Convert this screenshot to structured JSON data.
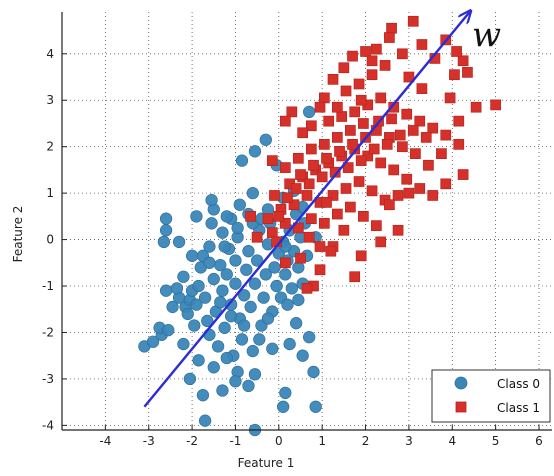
{
  "chart_data": {
    "type": "scatter",
    "xlabel": "Feature 1",
    "ylabel": "Feature 2",
    "xlim": [
      -5,
      6.3
    ],
    "ylim": [
      -4.1,
      4.9
    ],
    "x_ticks": [
      -4,
      -3,
      -2,
      -1,
      0,
      1,
      2,
      3,
      4,
      5,
      6
    ],
    "y_ticks": [
      -4,
      -3,
      -2,
      -1,
      0,
      1,
      2,
      3,
      4
    ],
    "grid": true,
    "legend_position": "bottom-right",
    "annotation": "w",
    "vector": {
      "from": [
        -3.1,
        -3.6
      ],
      "to": [
        4.4,
        4.9
      ],
      "color": "#2b2bd8"
    },
    "series": [
      {
        "name": "Class 0",
        "marker": "circle",
        "color": "#3a86b8",
        "points": [
          [
            -3.1,
            -2.3
          ],
          [
            -2.9,
            -2.2
          ],
          [
            -2.7,
            -2.05
          ],
          [
            -2.75,
            -1.9
          ],
          [
            -2.55,
            -1.95
          ],
          [
            -2.6,
            0.45
          ],
          [
            -2.6,
            0.2
          ],
          [
            -2.65,
            -0.05
          ],
          [
            -2.3,
            -1.25
          ],
          [
            -2.35,
            -1.05
          ],
          [
            -2.2,
            -0.8
          ],
          [
            -2.15,
            -1.45
          ],
          [
            -2.1,
            -1.6
          ],
          [
            -2.05,
            -1.3
          ],
          [
            -2.0,
            -1.1
          ],
          [
            -1.95,
            -1.85
          ],
          [
            -1.9,
            -1.4
          ],
          [
            -1.85,
            -1.0
          ],
          [
            -1.8,
            -0.6
          ],
          [
            -1.75,
            -0.35
          ],
          [
            -1.7,
            -1.25
          ],
          [
            -1.65,
            -1.75
          ],
          [
            -1.6,
            -2.05
          ],
          [
            -1.6,
            -0.15
          ],
          [
            -1.55,
            0.35
          ],
          [
            -1.5,
            0.65
          ],
          [
            -1.5,
            -0.85
          ],
          [
            -1.45,
            -1.55
          ],
          [
            -1.4,
            -2.3
          ],
          [
            -1.35,
            -0.55
          ],
          [
            -1.3,
            0.15
          ],
          [
            -1.3,
            -1.1
          ],
          [
            -1.25,
            -1.9
          ],
          [
            -1.2,
            -0.75
          ],
          [
            -1.15,
            -0.2
          ],
          [
            -1.1,
            0.45
          ],
          [
            -1.1,
            -1.4
          ],
          [
            -1.05,
            -2.5
          ],
          [
            -1.0,
            -0.95
          ],
          [
            -1.0,
            -0.45
          ],
          [
            -0.95,
            0.05
          ],
          [
            -0.9,
            -1.7
          ],
          [
            -0.85,
            -2.15
          ],
          [
            -0.8,
            -1.2
          ],
          [
            -0.75,
            -0.65
          ],
          [
            -0.7,
            -0.25
          ],
          [
            -0.7,
            0.55
          ],
          [
            -0.65,
            -1.45
          ],
          [
            -0.6,
            -2.4
          ],
          [
            -0.55,
            -0.95
          ],
          [
            -0.5,
            -0.45
          ],
          [
            -0.45,
            0.2
          ],
          [
            -0.4,
            -1.85
          ],
          [
            -0.35,
            -1.25
          ],
          [
            -0.3,
            -0.75
          ],
          [
            -0.25,
            -0.1
          ],
          [
            -0.2,
            0.35
          ],
          [
            -0.15,
            -1.55
          ],
          [
            -0.1,
            -0.6
          ],
          [
            -0.05,
            -1.0
          ],
          [
            0.0,
            -0.3
          ],
          [
            0.05,
            -1.25
          ],
          [
            0.1,
            -0.05
          ],
          [
            0.15,
            -0.75
          ],
          [
            0.2,
            -0.45
          ],
          [
            0.25,
            0.2
          ],
          [
            0.3,
            -1.05
          ],
          [
            0.35,
            -0.25
          ],
          [
            0.4,
            0.55
          ],
          [
            0.45,
            -0.6
          ],
          [
            0.5,
            0.05
          ],
          [
            0.55,
            -0.95
          ],
          [
            0.6,
            0.35
          ],
          [
            0.65,
            -0.35
          ],
          [
            0.7,
            -2.1
          ],
          [
            -2.2,
            -2.25
          ],
          [
            -1.85,
            -2.6
          ],
          [
            -1.5,
            -2.75
          ],
          [
            -1.2,
            -2.55
          ],
          [
            -0.95,
            -2.85
          ],
          [
            -0.7,
            -3.15
          ],
          [
            -1.3,
            -3.25
          ],
          [
            -1.75,
            -3.35
          ],
          [
            -2.05,
            -3.0
          ],
          [
            -1.0,
            -3.05
          ],
          [
            -0.55,
            -2.9
          ],
          [
            0.15,
            -3.3
          ],
          [
            0.1,
            -3.6
          ],
          [
            -1.7,
            -3.9
          ],
          [
            -0.55,
            -4.1
          ],
          [
            0.8,
            -2.85
          ],
          [
            0.85,
            -3.6
          ],
          [
            0.55,
            -2.5
          ],
          [
            0.25,
            -2.25
          ],
          [
            -0.15,
            -2.35
          ],
          [
            -0.45,
            -2.15
          ],
          [
            -0.8,
            -1.85
          ],
          [
            -1.1,
            -1.65
          ],
          [
            -1.35,
            -1.35
          ],
          [
            -0.25,
            -1.7
          ],
          [
            0.2,
            -1.4
          ],
          [
            0.45,
            -1.3
          ],
          [
            0.4,
            -1.8
          ],
          [
            -1.9,
            0.5
          ],
          [
            -1.55,
            0.85
          ],
          [
            -1.2,
            0.5
          ],
          [
            -0.9,
            0.75
          ],
          [
            -0.6,
            1.0
          ],
          [
            -0.55,
            1.9
          ],
          [
            -0.85,
            1.7
          ],
          [
            -0.3,
            2.15
          ],
          [
            -0.05,
            1.6
          ],
          [
            0.35,
            1.05
          ],
          [
            0.7,
            2.75
          ],
          [
            -0.6,
            0.35
          ],
          [
            -0.25,
            0.65
          ],
          [
            0.1,
            0.9
          ],
          [
            -1.6,
            -0.5
          ],
          [
            -2.0,
            -0.35
          ],
          [
            -2.3,
            -0.05
          ],
          [
            -1.25,
            -0.15
          ],
          [
            -0.95,
            0.25
          ],
          [
            -0.4,
            0.45
          ],
          [
            0.15,
            -0.15
          ],
          [
            0.55,
            0.7
          ],
          [
            0.85,
            0.05
          ],
          [
            -2.45,
            -1.45
          ],
          [
            -2.6,
            -1.1
          ]
        ]
      },
      {
        "name": "Class 1",
        "marker": "square",
        "color": "#d6302a",
        "points": [
          [
            3.1,
            4.7
          ],
          [
            2.6,
            4.55
          ],
          [
            2.55,
            4.35
          ],
          [
            2.25,
            4.1
          ],
          [
            2.85,
            4.0
          ],
          [
            3.3,
            4.2
          ],
          [
            3.6,
            3.9
          ],
          [
            3.85,
            4.3
          ],
          [
            2.0,
            4.05
          ],
          [
            1.7,
            3.95
          ],
          [
            1.5,
            3.7
          ],
          [
            1.25,
            3.45
          ],
          [
            1.55,
            3.2
          ],
          [
            1.85,
            3.35
          ],
          [
            2.15,
            3.55
          ],
          [
            2.45,
            3.75
          ],
          [
            3.0,
            3.5
          ],
          [
            3.3,
            3.25
          ],
          [
            3.95,
            3.05
          ],
          [
            4.05,
            3.55
          ],
          [
            4.35,
            3.6
          ],
          [
            4.55,
            2.85
          ],
          [
            4.15,
            2.55
          ],
          [
            4.25,
            3.85
          ],
          [
            1.05,
            3.05
          ],
          [
            0.95,
            2.85
          ],
          [
            0.3,
            2.75
          ],
          [
            0.15,
            2.55
          ],
          [
            0.75,
            2.45
          ],
          [
            0.55,
            2.3
          ],
          [
            1.15,
            2.55
          ],
          [
            1.45,
            2.65
          ],
          [
            1.75,
            2.75
          ],
          [
            2.05,
            2.9
          ],
          [
            2.35,
            3.05
          ],
          [
            2.65,
            2.85
          ],
          [
            2.95,
            2.7
          ],
          [
            3.25,
            2.55
          ],
          [
            3.55,
            2.4
          ],
          [
            3.85,
            2.25
          ],
          [
            4.15,
            2.05
          ],
          [
            4.25,
            1.4
          ],
          [
            3.75,
            1.85
          ],
          [
            3.45,
            1.6
          ],
          [
            3.15,
            1.85
          ],
          [
            2.85,
            2.0
          ],
          [
            2.55,
            2.2
          ],
          [
            2.25,
            2.35
          ],
          [
            1.95,
            2.5
          ],
          [
            1.65,
            2.35
          ],
          [
            1.35,
            2.2
          ],
          [
            1.05,
            2.05
          ],
          [
            0.75,
            1.95
          ],
          [
            0.45,
            1.75
          ],
          [
            0.15,
            1.55
          ],
          [
            -0.15,
            1.7
          ],
          [
            0.25,
            1.2
          ],
          [
            0.55,
            1.35
          ],
          [
            0.85,
            1.5
          ],
          [
            1.15,
            1.65
          ],
          [
            1.45,
            1.8
          ],
          [
            1.75,
            1.95
          ],
          [
            2.05,
            1.8
          ],
          [
            2.35,
            1.65
          ],
          [
            2.65,
            1.5
          ],
          [
            2.95,
            1.3
          ],
          [
            3.25,
            1.1
          ],
          [
            3.55,
            0.95
          ],
          [
            3.85,
            1.2
          ],
          [
            2.75,
            0.95
          ],
          [
            2.45,
            0.85
          ],
          [
            2.15,
            1.05
          ],
          [
            1.85,
            1.25
          ],
          [
            1.55,
            1.1
          ],
          [
            1.25,
            0.95
          ],
          [
            0.95,
            0.8
          ],
          [
            0.65,
            0.95
          ],
          [
            0.35,
            0.75
          ],
          [
            0.05,
            0.65
          ],
          [
            -0.25,
            0.45
          ],
          [
            -0.65,
            0.5
          ],
          [
            -0.5,
            0.05
          ],
          [
            -0.15,
            0.15
          ],
          [
            0.15,
            0.35
          ],
          [
            0.45,
            0.25
          ],
          [
            0.75,
            0.45
          ],
          [
            1.05,
            0.35
          ],
          [
            1.35,
            0.55
          ],
          [
            1.65,
            0.7
          ],
          [
            1.95,
            0.5
          ],
          [
            2.25,
            0.3
          ],
          [
            2.55,
            0.75
          ],
          [
            0.95,
            -0.15
          ],
          [
            1.25,
            -0.15
          ],
          [
            0.5,
            -0.4
          ],
          [
            0.15,
            -0.5
          ],
          [
            -0.05,
            -0.05
          ],
          [
            0.95,
            -0.65
          ],
          [
            0.8,
            -1.0
          ],
          [
            0.65,
            -1.05
          ],
          [
            1.75,
            -0.8
          ],
          [
            1.2,
            -0.25
          ],
          [
            1.9,
            -0.35
          ],
          [
            2.35,
            -0.05
          ],
          [
            2.75,
            0.2
          ],
          [
            0.0,
            0.5
          ],
          [
            0.4,
            1.1
          ],
          [
            0.7,
            1.2
          ],
          [
            1.0,
            1.35
          ],
          [
            1.3,
            1.45
          ],
          [
            1.6,
            1.55
          ],
          [
            1.9,
            1.7
          ],
          [
            2.2,
            1.95
          ],
          [
            2.5,
            2.05
          ],
          [
            2.8,
            2.25
          ],
          [
            3.1,
            2.35
          ],
          [
            3.4,
            2.2
          ],
          [
            1.4,
            1.9
          ],
          [
            1.1,
            1.75
          ],
          [
            0.8,
            1.6
          ],
          [
            0.5,
            1.4
          ],
          [
            0.2,
            0.9
          ],
          [
            -0.1,
            0.95
          ],
          [
            2.0,
            2.2
          ],
          [
            1.7,
            2.05
          ],
          [
            2.3,
            2.55
          ],
          [
            2.6,
            2.6
          ],
          [
            1.9,
            3.0
          ],
          [
            5.0,
            2.9
          ],
          [
            4.1,
            4.05
          ],
          [
            2.15,
            3.85
          ],
          [
            1.35,
            2.85
          ],
          [
            3.0,
            1.0
          ],
          [
            1.5,
            0.2
          ],
          [
            0.7,
            0.05
          ],
          [
            1.1,
            0.8
          ]
        ]
      }
    ]
  }
}
